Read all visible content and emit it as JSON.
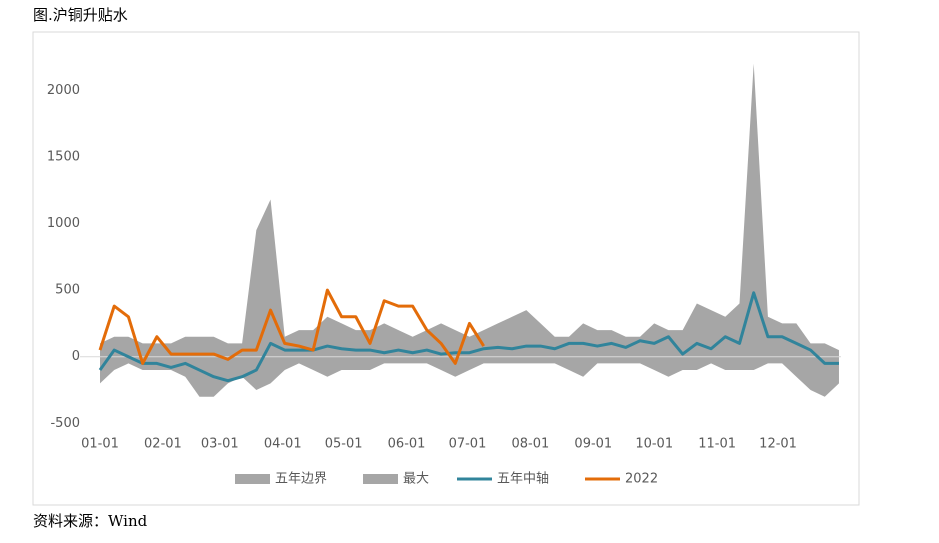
{
  "chart_data": {
    "type": "line",
    "title": "图.沪铜升贴水",
    "source": "资料来源：Wind",
    "x": [
      0,
      7,
      14,
      21,
      28,
      35,
      42,
      49,
      56,
      63,
      70,
      77,
      84,
      91,
      98,
      105,
      112,
      119,
      126,
      133,
      140,
      147,
      154,
      161,
      168,
      175,
      182,
      189,
      196,
      203,
      210,
      217,
      224,
      231,
      238,
      245,
      252,
      259,
      266,
      273,
      280,
      287,
      294,
      301,
      308,
      315,
      322,
      329,
      336,
      343,
      350,
      357,
      364
    ],
    "xlim": [
      0,
      365
    ],
    "xticks": [
      {
        "value": 0,
        "label": "01-01"
      },
      {
        "value": 31,
        "label": "02-01"
      },
      {
        "value": 59,
        "label": "03-01"
      },
      {
        "value": 90,
        "label": "04-01"
      },
      {
        "value": 120,
        "label": "05-01"
      },
      {
        "value": 151,
        "label": "06-01"
      },
      {
        "value": 181,
        "label": "07-01"
      },
      {
        "value": 212,
        "label": "08-01"
      },
      {
        "value": 243,
        "label": "09-01"
      },
      {
        "value": 273,
        "label": "10-01"
      },
      {
        "value": 304,
        "label": "11-01"
      },
      {
        "value": 334,
        "label": "12-01"
      }
    ],
    "ylim": [
      -550,
      2250
    ],
    "yticks": [
      -500,
      0,
      500,
      1000,
      1500,
      2000
    ],
    "series": [
      {
        "name": "五年边界",
        "kind": "area",
        "color": "#a6a6a6",
        "values": [
          -200,
          -100,
          -50,
          -100,
          -100,
          -100,
          -150,
          -300,
          -300,
          -200,
          -150,
          -250,
          -200,
          -100,
          -50,
          -100,
          -150,
          -100,
          -100,
          -100,
          -50,
          -50,
          -50,
          -50,
          -100,
          -150,
          -100,
          -50,
          -50,
          -50,
          -50,
          -50,
          -50,
          -100,
          -150,
          -50,
          -50,
          -50,
          -50,
          -100,
          -150,
          -100,
          -100,
          -50,
          -100,
          -100,
          -100,
          -50,
          -50,
          -150,
          -250,
          -300,
          -200
        ]
      },
      {
        "name": "最大",
        "kind": "area",
        "color": "#a6a6a6",
        "values": [
          100,
          150,
          150,
          100,
          100,
          100,
          150,
          150,
          150,
          100,
          100,
          950,
          1180,
          150,
          200,
          200,
          300,
          250,
          200,
          200,
          250,
          200,
          150,
          200,
          250,
          200,
          150,
          200,
          250,
          300,
          350,
          250,
          150,
          150,
          250,
          200,
          200,
          150,
          150,
          250,
          200,
          200,
          400,
          350,
          300,
          400,
          2200,
          300,
          250,
          250,
          100,
          100,
          50
        ]
      },
      {
        "name": "五年中轴",
        "kind": "line",
        "color": "#31849b",
        "values": [
          -100,
          50,
          0,
          -50,
          -50,
          -80,
          -50,
          -100,
          -150,
          -180,
          -150,
          -100,
          100,
          50,
          50,
          50,
          80,
          60,
          50,
          50,
          30,
          50,
          30,
          50,
          20,
          30,
          30,
          60,
          70,
          60,
          80,
          80,
          60,
          100,
          100,
          80,
          100,
          70,
          120,
          100,
          150,
          20,
          100,
          60,
          150,
          100,
          480,
          150,
          150,
          100,
          50,
          -50,
          -50
        ]
      },
      {
        "name": "2022",
        "kind": "line",
        "color": "#e36c09",
        "values": [
          50,
          380,
          300,
          -50,
          150,
          20,
          20,
          20,
          20,
          -20,
          50,
          50,
          350,
          100,
          80,
          50,
          500,
          300,
          300,
          100,
          420,
          380,
          380,
          200,
          100,
          -50,
          250,
          80,
          null,
          null,
          null,
          null,
          null,
          null,
          null,
          null,
          null,
          null,
          null,
          null,
          null,
          null,
          null,
          null,
          null,
          null,
          null,
          null,
          null,
          null,
          null,
          null,
          null
        ]
      }
    ],
    "legend": "bottom"
  }
}
